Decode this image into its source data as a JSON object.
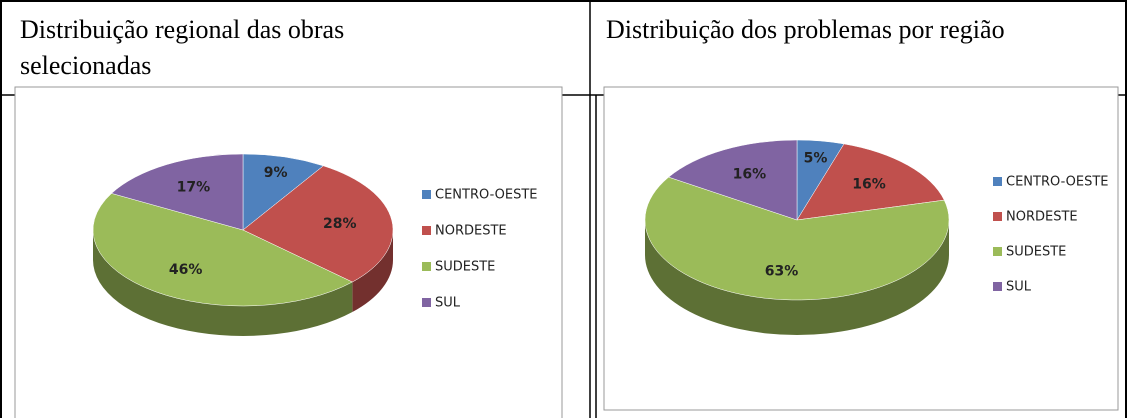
{
  "chart_data": [
    {
      "type": "pie",
      "title": "Distribuição regional das obras selecionadas",
      "categories": [
        "CENTRO-OESTE",
        "NORDESTE",
        "SUDESTE",
        "SUL"
      ],
      "values": [
        9,
        28,
        46,
        17
      ],
      "value_labels": [
        "9%",
        "28%",
        "46%",
        "17%"
      ],
      "colors": [
        "#4f81bd",
        "#c0504d",
        "#9bbb59",
        "#8064a2"
      ],
      "legend": "right"
    },
    {
      "type": "pie",
      "title": "Distribuição dos problemas por região",
      "categories": [
        "CENTRO-OESTE",
        "NORDESTE",
        "SUDESTE",
        "SUL"
      ],
      "values": [
        5,
        16,
        63,
        16
      ],
      "value_labels": [
        "5%",
        "16%",
        "63%",
        "16%"
      ],
      "colors": [
        "#4f81bd",
        "#c0504d",
        "#9bbb59",
        "#8064a2"
      ],
      "legend": "right"
    }
  ]
}
